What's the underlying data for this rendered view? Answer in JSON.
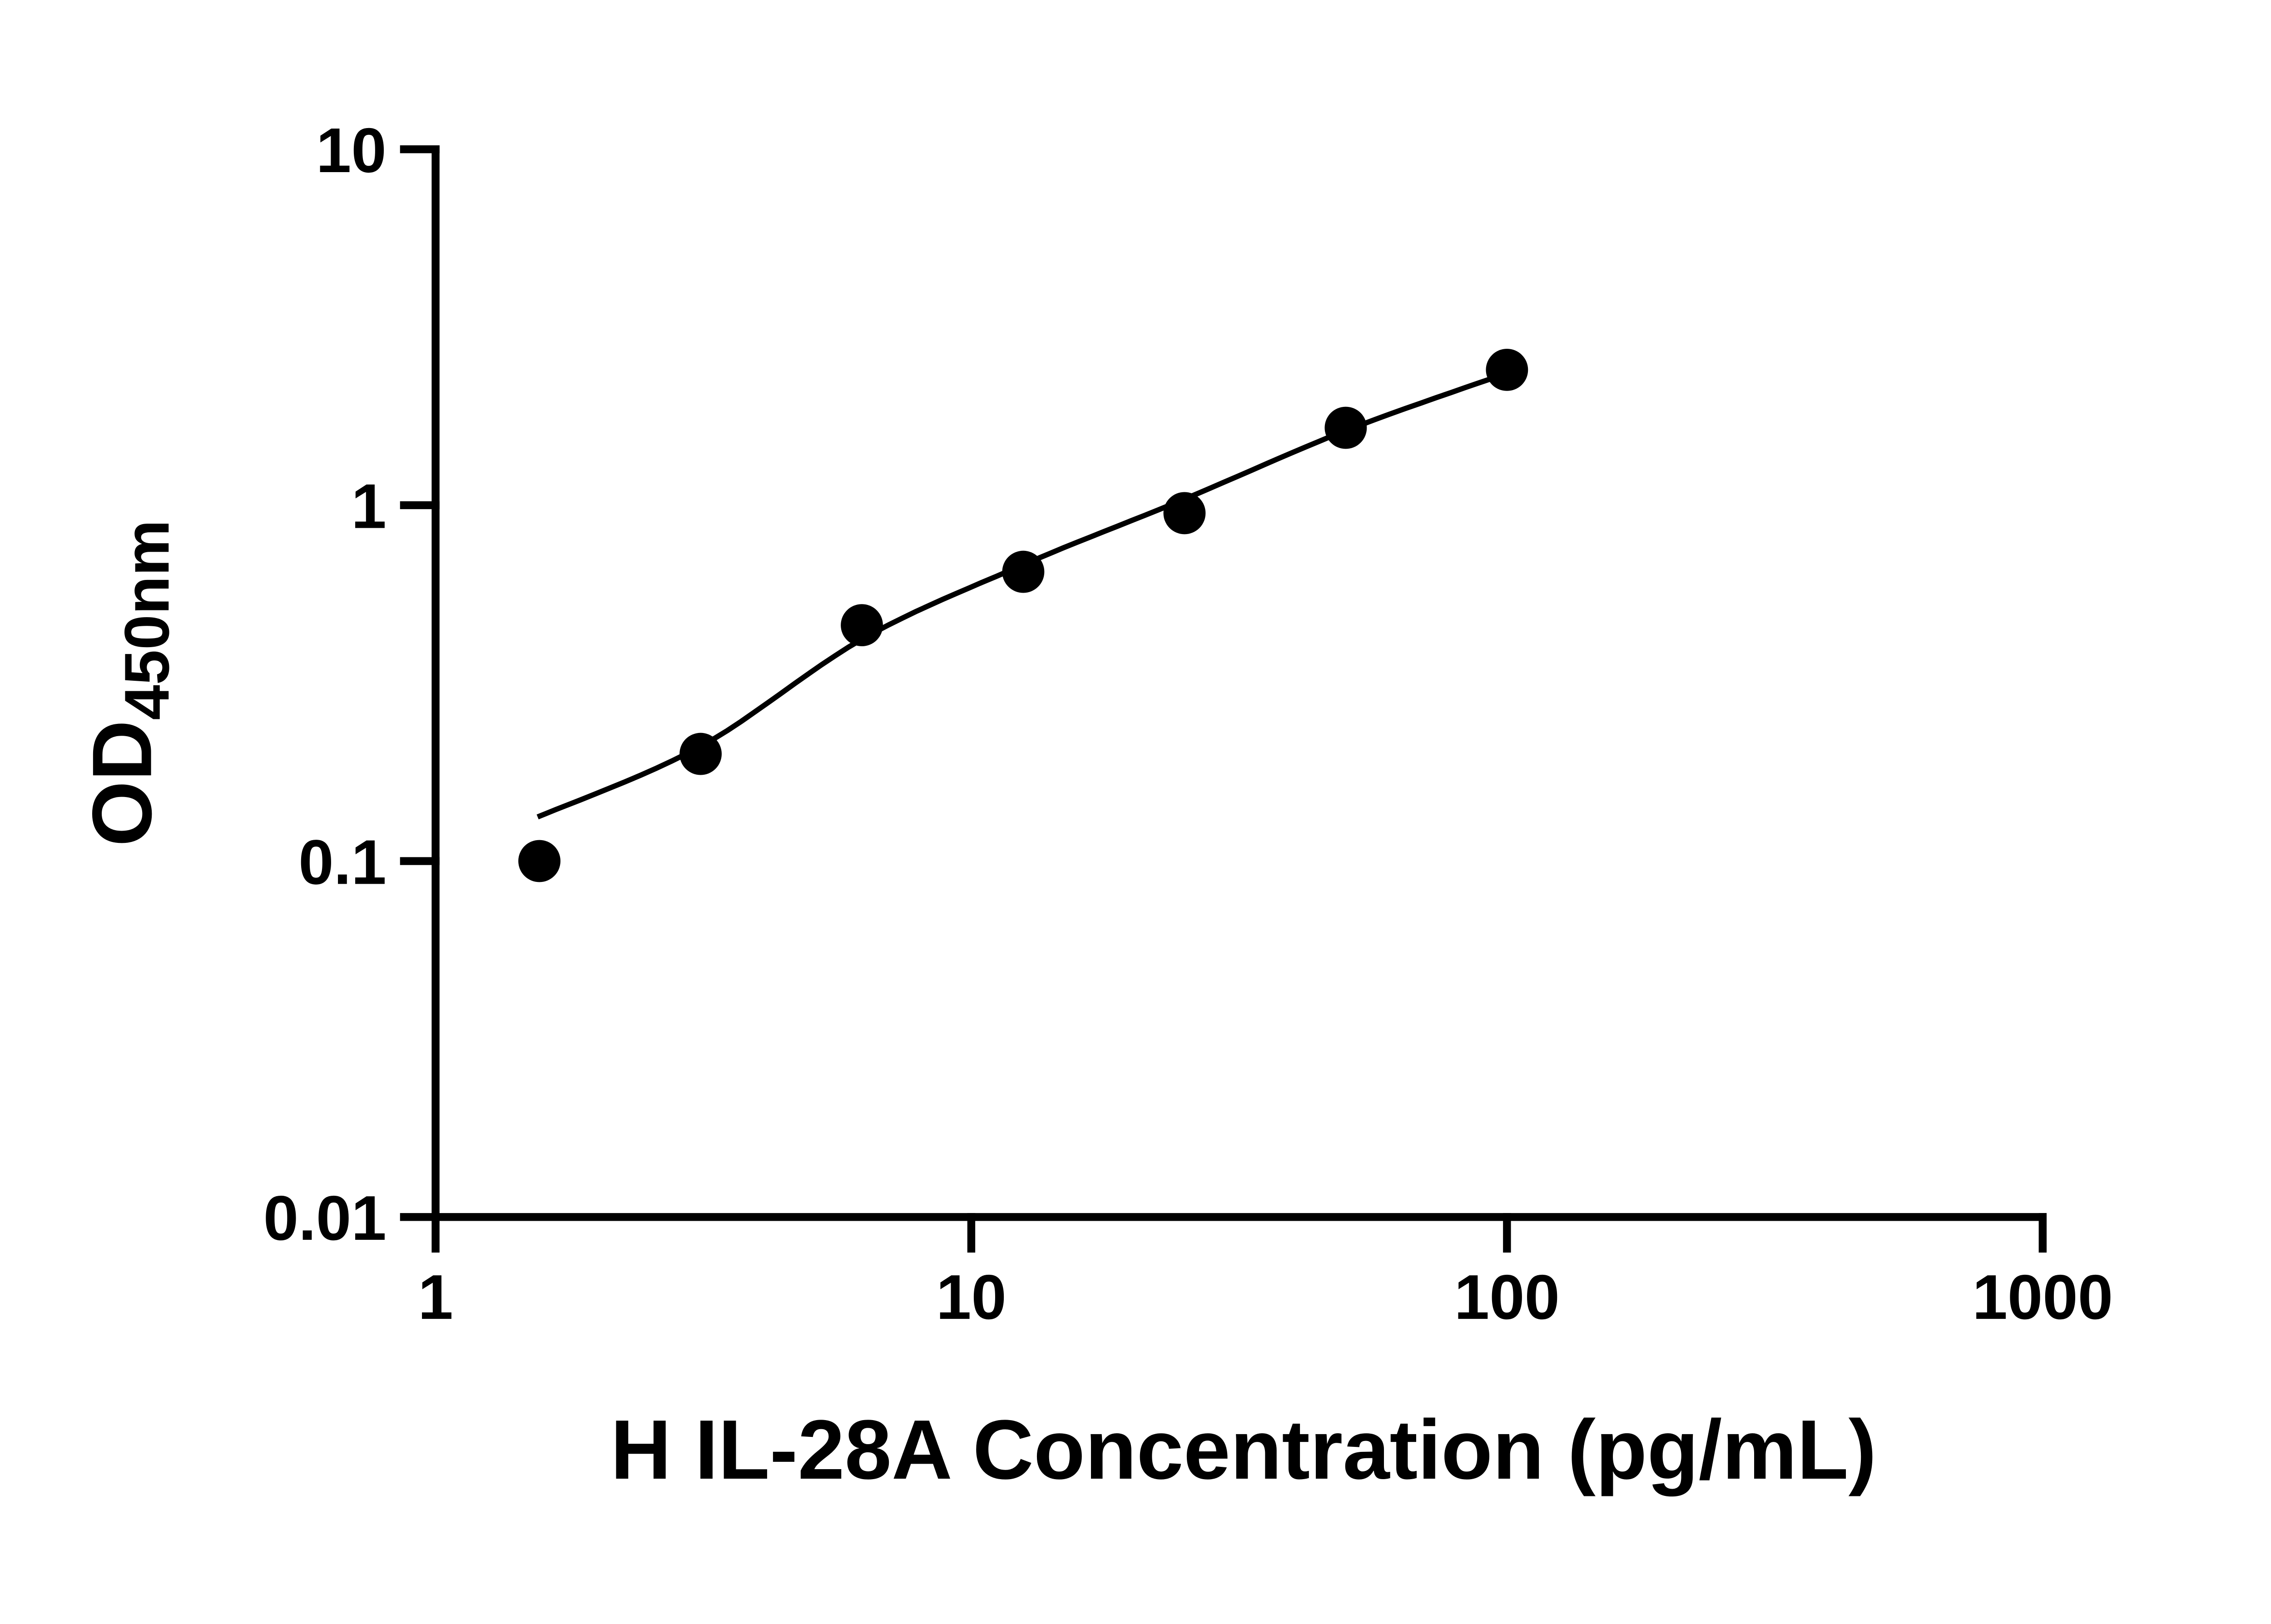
{
  "figure": {
    "background_color": "#ffffff",
    "ink_color": "#000000"
  },
  "chart_data": {
    "type": "scatter",
    "xlabel": "H IL-28A Concentration (pg/mL)",
    "ylabel_base": "OD",
    "ylabel_subscript": "450nm",
    "x_scale": "log10",
    "y_scale": "log10",
    "xlim": [
      1,
      1000
    ],
    "ylim": [
      0.01,
      10
    ],
    "grid": false,
    "legend": "none",
    "x_ticks": [
      {
        "value": 1,
        "label": "1"
      },
      {
        "value": 10,
        "label": "10"
      },
      {
        "value": 100,
        "label": "100"
      },
      {
        "value": 1000,
        "label": "1000"
      }
    ],
    "y_ticks": [
      {
        "value": 0.01,
        "label": "0.01"
      },
      {
        "value": 0.1,
        "label": "0.1"
      },
      {
        "value": 1,
        "label": "1"
      },
      {
        "value": 10,
        "label": "10"
      }
    ],
    "series": [
      {
        "marker": "filled-circle",
        "marker_color": "#000000",
        "points": [
          {
            "x": 1.5625,
            "y": 0.1
          },
          {
            "x": 3.125,
            "y": 0.2
          },
          {
            "x": 6.25,
            "y": 0.46
          },
          {
            "x": 12.5,
            "y": 0.65
          },
          {
            "x": 25,
            "y": 0.95
          },
          {
            "x": 50,
            "y": 1.65
          },
          {
            "x": 100,
            "y": 2.4
          }
        ]
      }
    ],
    "fit_curve": {
      "style": "smooth",
      "color": "#000000",
      "points": [
        {
          "x": 1.55,
          "y": 0.133
        },
        {
          "x": 3.125,
          "y": 0.21
        },
        {
          "x": 6.25,
          "y": 0.42
        },
        {
          "x": 12.5,
          "y": 0.68
        },
        {
          "x": 25,
          "y": 1.04
        },
        {
          "x": 50,
          "y": 1.62
        },
        {
          "x": 100,
          "y": 2.35
        }
      ]
    }
  }
}
